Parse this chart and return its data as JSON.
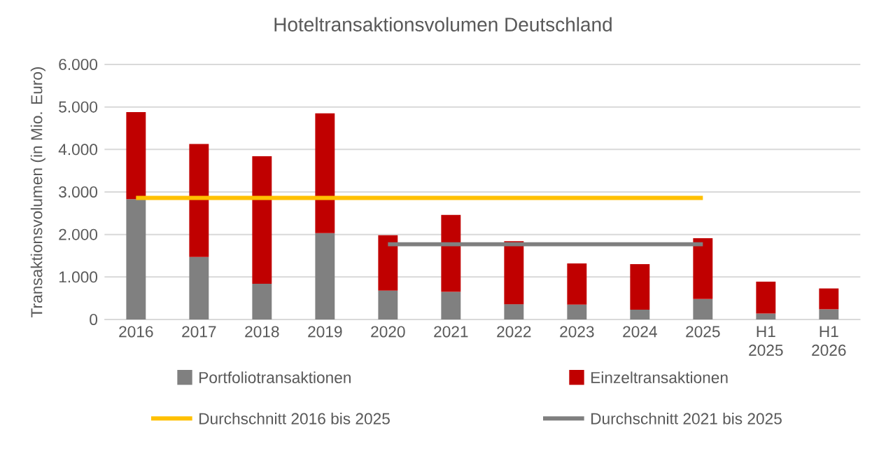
{
  "chart_data": {
    "type": "bar",
    "stacked": true,
    "title": "Hoteltransaktionsvolumen Deutschland",
    "ylabel": "Transaktionsvolumen (in Mio. Euro)",
    "categories": [
      "2016",
      "2017",
      "2018",
      "2019",
      "2020",
      "2021",
      "2022",
      "2023",
      "2024",
      "2025",
      "H1 2025",
      "H1 2026"
    ],
    "series": [
      {
        "name": "Portfoliotransaktionen",
        "color": "#808080",
        "values": [
          2830,
          1470,
          840,
          2030,
          680,
          650,
          360,
          350,
          230,
          480,
          140,
          240
        ]
      },
      {
        "name": "Einzeltransaktionen",
        "color": "#c00000",
        "values": [
          2050,
          2660,
          3000,
          2820,
          1300,
          1810,
          1480,
          970,
          1070,
          1430,
          750,
          490
        ]
      },
      {
        "name": "Durchschnitt 2016 bis 2025",
        "type": "line",
        "color": "#ffc000",
        "values": [
          2860,
          2860,
          2860,
          2860,
          2860,
          2860,
          2860,
          2860,
          2860,
          2860,
          null,
          null
        ]
      },
      {
        "name": "Durchschnitt 2021 bis 2025",
        "type": "line",
        "color": "#7f7f7f",
        "values": [
          null,
          null,
          null,
          null,
          1770,
          1770,
          1770,
          1770,
          1770,
          1770,
          null,
          null
        ]
      }
    ],
    "ylim": [
      0,
      6000
    ],
    "yticks": [
      {
        "value": 0,
        "label": "0"
      },
      {
        "value": 1000,
        "label": "1.000"
      },
      {
        "value": 2000,
        "label": "2.000"
      },
      {
        "value": 3000,
        "label": "3.000"
      },
      {
        "value": 4000,
        "label": "4.000"
      },
      {
        "value": 5000,
        "label": "5.000"
      },
      {
        "value": 6000,
        "label": "6.000"
      }
    ],
    "grid": "y",
    "legend": "bottom"
  }
}
